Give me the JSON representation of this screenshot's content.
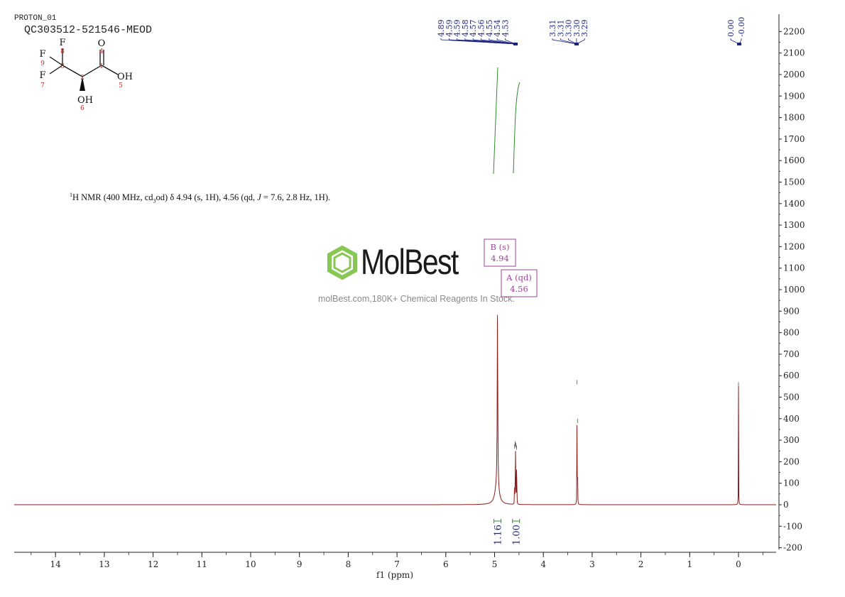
{
  "header": {
    "experiment": "PROTON_01",
    "sample": "QC303512-521546-MEOD"
  },
  "description": {
    "nucleus": "1",
    "text_a": "H NMR (400 MHz, cd",
    "sub": "3",
    "text_b": "od) δ 4.94 (s, 1H), 4.56 (qd, ",
    "j": "J",
    "text_c": " = 7.6, 2.8 Hz, 1H)."
  },
  "structure": {
    "atoms": [
      {
        "id": "F8",
        "symbol": "F",
        "number": "8"
      },
      {
        "id": "F9",
        "symbol": "F",
        "number": "9"
      },
      {
        "id": "F7",
        "symbol": "F",
        "number": "7"
      },
      {
        "id": "C3",
        "symbol": "",
        "number": "3"
      },
      {
        "id": "C2",
        "symbol": "",
        "number": "2"
      },
      {
        "id": "C1",
        "symbol": "",
        "number": "1"
      },
      {
        "id": "O4",
        "symbol": "O",
        "number": "4"
      },
      {
        "id": "O5",
        "symbol": "OH",
        "number": "5"
      },
      {
        "id": "O6",
        "symbol": "OH",
        "number": "6"
      }
    ]
  },
  "watermark": {
    "brand": "MolBest",
    "tagline": "molBest.com,180K+ Chemical Reagents In Stock."
  },
  "colors": {
    "spectrum": "#8b1a1a",
    "integral": "#2e8b2e",
    "peak_label": "#1a237e",
    "multiplet": "#a0429a",
    "axis": "#222222",
    "watermark_green": "#7dc242"
  },
  "chart_data": {
    "type": "line",
    "xlabel": "f1 (ppm)",
    "ylabel": "",
    "x_reversed": true,
    "xlim": [
      14.9,
      -0.78
    ],
    "ylim": [
      -200,
      2200
    ],
    "x_ticks": [
      14,
      13,
      12,
      11,
      10,
      9,
      8,
      7,
      6,
      5,
      4,
      3,
      2,
      1,
      0
    ],
    "y_ticks": [
      2200,
      2100,
      2000,
      1900,
      1800,
      1700,
      1600,
      1500,
      1400,
      1300,
      1200,
      1100,
      1000,
      900,
      800,
      700,
      600,
      500,
      400,
      300,
      200,
      100,
      0,
      -100,
      -200
    ],
    "peaks": [
      {
        "ppm": 4.94,
        "height": 860,
        "width": 0.012
      },
      {
        "ppm": 4.95,
        "height": 95,
        "width": 0.09
      },
      {
        "ppm": 4.59,
        "height": 260,
        "width": 0.003
      },
      {
        "ppm": 4.58,
        "height": 275,
        "width": 0.003
      },
      {
        "ppm": 4.57,
        "height": 270,
        "width": 0.003
      },
      {
        "ppm": 4.56,
        "height": 265,
        "width": 0.003
      },
      {
        "ppm": 4.55,
        "height": 255,
        "width": 0.003
      },
      {
        "ppm": 4.54,
        "height": 120,
        "width": 0.003
      },
      {
        "ppm": 3.31,
        "height": 560,
        "width": 0.004
      },
      {
        "ppm": 3.3,
        "height": 380,
        "width": 0.004
      },
      {
        "ppm": 0.0,
        "height": 550,
        "width": 0.004
      }
    ],
    "peak_labels": {
      "group1": [
        "4.89",
        "4.59",
        "4.59",
        "4.58",
        "4.57",
        "4.56",
        "4.55",
        "4.54",
        "4.53"
      ],
      "group2": [
        "3.31",
        "3.31",
        "3.30",
        "3.30",
        "3.29"
      ],
      "group3": [
        "0.00",
        "-0.00"
      ]
    },
    "integrals": [
      {
        "ppm": 4.94,
        "value": "1.16"
      },
      {
        "ppm": 4.56,
        "value": "1.00"
      }
    ],
    "multiplets": [
      {
        "id": "B",
        "label": "B (s)",
        "shift": "4.94"
      },
      {
        "id": "A",
        "label": "A (qd)",
        "shift": "4.56"
      }
    ]
  }
}
